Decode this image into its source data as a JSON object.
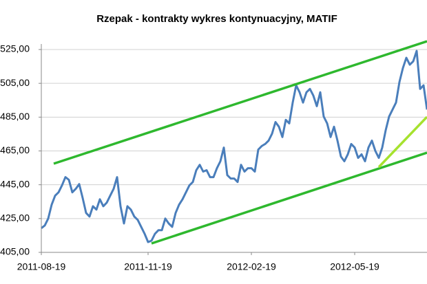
{
  "chart_data": {
    "type": "line",
    "title": "Rzepak - kontrakty wykres kontynuacyjny, MATIF",
    "categories": [
      "2011-08-19",
      null,
      null,
      null,
      null,
      null,
      null,
      null,
      null,
      null,
      null,
      null,
      null,
      null,
      null,
      null,
      null,
      null,
      null,
      null,
      null,
      null,
      null,
      null,
      null,
      null,
      null,
      null,
      null,
      null,
      null,
      "2011-11-19",
      null,
      null,
      null,
      null,
      null,
      null,
      null,
      null,
      null,
      null,
      null,
      null,
      null,
      null,
      null,
      null,
      null,
      null,
      null,
      null,
      null,
      null,
      null,
      null,
      null,
      null,
      null,
      null,
      null,
      "2012-02-19",
      null,
      null,
      null,
      null,
      null,
      null,
      null,
      null,
      null,
      null,
      null,
      null,
      null,
      null,
      null,
      null,
      null,
      null,
      null,
      null,
      null,
      null,
      null,
      null,
      null,
      null,
      null,
      null,
      null,
      "2012-05-19",
      null,
      null,
      null,
      null,
      null,
      null,
      null,
      null,
      null,
      null,
      null,
      null,
      null,
      null,
      null,
      null,
      null,
      null,
      null,
      null,
      null
    ],
    "series": [
      {
        "color": "#4a7ebb",
        "values": [
          419.3,
          420.9,
          425,
          433.2,
          438.5,
          440.5,
          444.6,
          449.5,
          447.9,
          440.5,
          442.6,
          445.4,
          437.2,
          428.3,
          426.2,
          432.3,
          430.3,
          436.4,
          432.3,
          434.4,
          438.5,
          442.6,
          449.5,
          432.3,
          422.1,
          432.3,
          430.3,
          426.2,
          424.2,
          420.1,
          416,
          411.1,
          411.9,
          416,
          418.1,
          418.1,
          425,
          422.1,
          420.1,
          428.3,
          433.2,
          436.4,
          440.5,
          444.6,
          446.6,
          453.6,
          456.8,
          452.8,
          453.6,
          449.5,
          449.5,
          454.8,
          458.9,
          467,
          450.7,
          448.7,
          448.7,
          446.6,
          456.8,
          452.8,
          454.8,
          454.8,
          452.8,
          465.8,
          467.9,
          469.1,
          471.1,
          475.2,
          482.1,
          479.3,
          473.2,
          483.4,
          481.3,
          493.6,
          503.8,
          499.7,
          493.6,
          499.7,
          501.7,
          497.7,
          491.5,
          499.7,
          485.4,
          481.3,
          473.2,
          479.3,
          471.1,
          461.7,
          458.9,
          463,
          469.1,
          467,
          460.9,
          463,
          458.9,
          467,
          471.1,
          465,
          460.9,
          467,
          477.2,
          485.4,
          489.5,
          493.6,
          505.8,
          514,
          520.1,
          516,
          518,
          524.2,
          501.7,
          503.8,
          489.5
        ]
      }
    ],
    "ylim": [
      405,
      525
    ],
    "yticks": [
      {
        "value": 405,
        "label": "405,00"
      },
      {
        "value": 425,
        "label": "425,00"
      },
      {
        "value": 445,
        "label": "445,00"
      },
      {
        "value": 465,
        "label": "465,00"
      },
      {
        "value": 485,
        "label": "485,00"
      },
      {
        "value": 505,
        "label": "505,00"
      },
      {
        "value": 525,
        "label": "525,00"
      }
    ],
    "grid": true
  }
}
